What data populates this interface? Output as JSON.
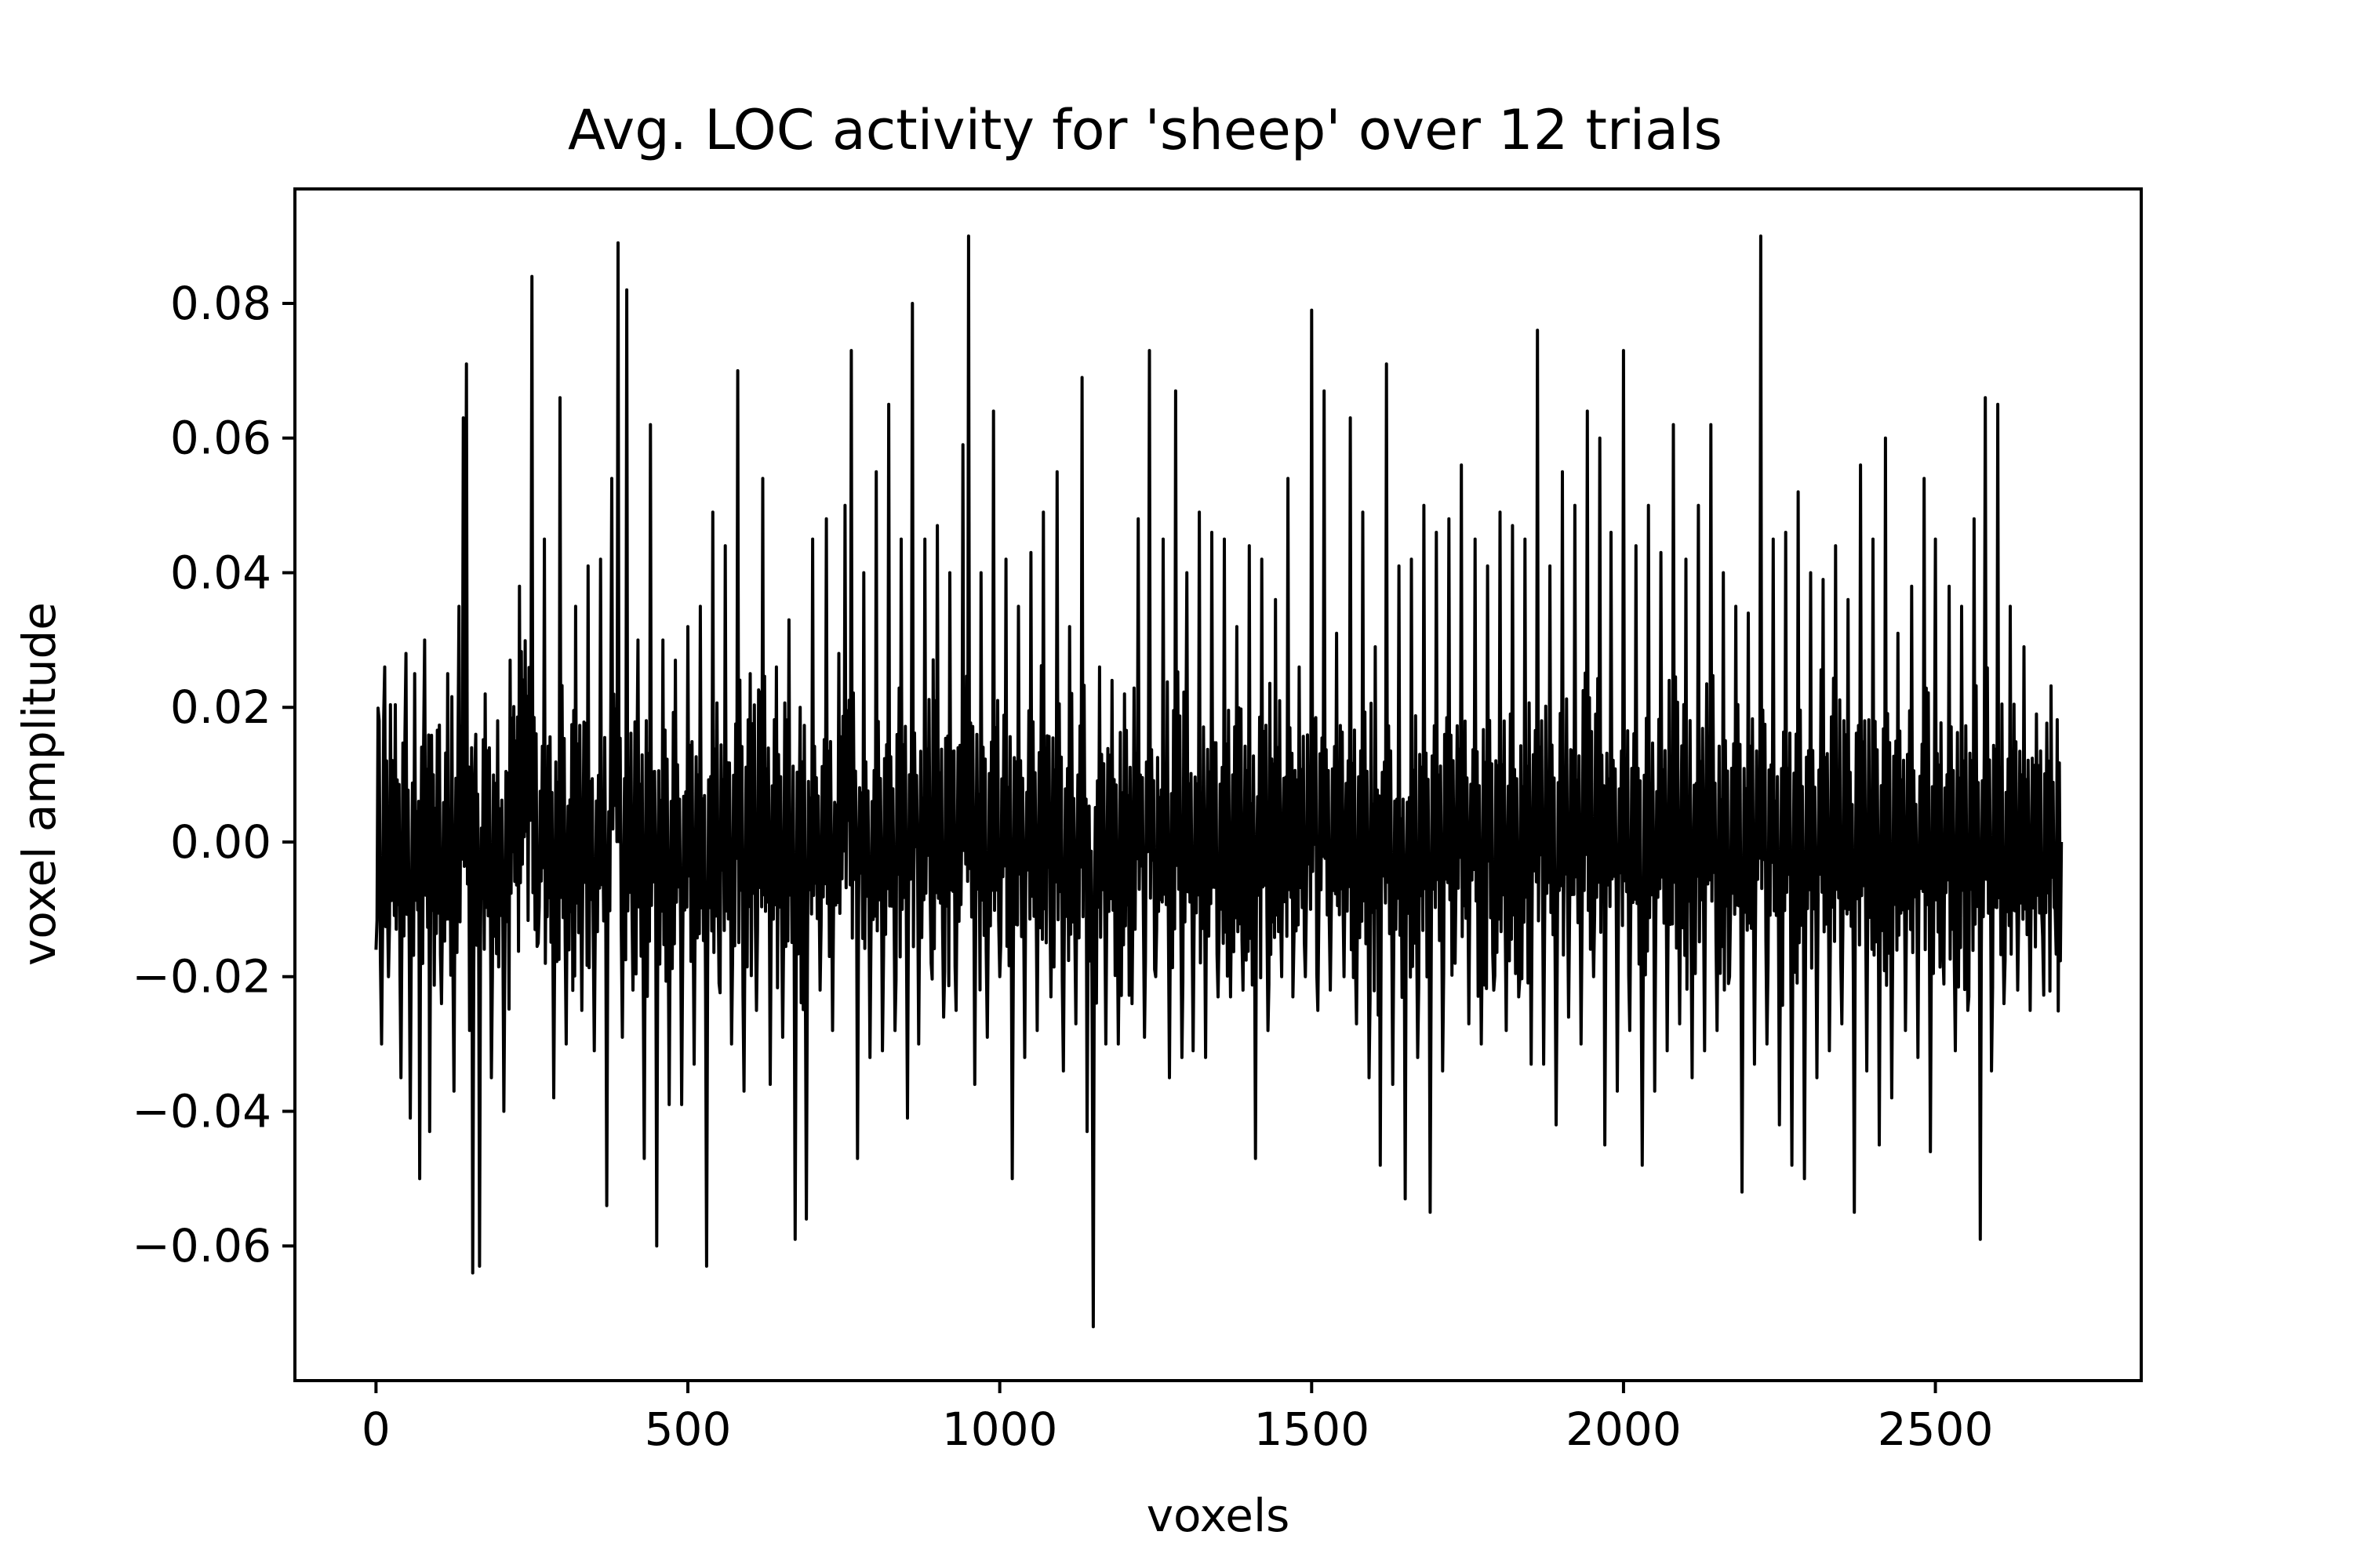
{
  "chart_data": {
    "type": "line",
    "title": "Avg. LOC activity for 'sheep' over 12 trials",
    "xlabel": "voxels",
    "ylabel": "voxel amplitude",
    "xlim": [
      -130,
      2830
    ],
    "ylim": [
      -0.08,
      0.097
    ],
    "xticks": [
      0,
      500,
      1000,
      1500,
      2000,
      2500
    ],
    "xtick_labels": [
      "0",
      "500",
      "1000",
      "1500",
      "2000",
      "2500"
    ],
    "yticks": [
      -0.06,
      -0.04,
      -0.02,
      0.0,
      0.02,
      0.04,
      0.06,
      0.08
    ],
    "ytick_labels": [
      "−0.06",
      "−0.04",
      "−0.02",
      "0.00",
      "0.02",
      "0.04",
      "0.06",
      "0.08"
    ],
    "grid": false,
    "legend": "none",
    "line_color": "#000000",
    "series": [
      {
        "n_points": 2703,
        "x_start": 0,
        "x_end": 2702,
        "peaks": [
          [
            0,
            -0.016
          ],
          [
            5,
            0.018
          ],
          [
            9,
            -0.03
          ],
          [
            14,
            0.026
          ],
          [
            20,
            -0.02
          ],
          [
            28,
            0.004
          ],
          [
            40,
            -0.035
          ],
          [
            48,
            0.028
          ],
          [
            55,
            -0.041
          ],
          [
            62,
            0.025
          ],
          [
            70,
            -0.05
          ],
          [
            78,
            0.03
          ],
          [
            86,
            -0.043
          ],
          [
            95,
            0.005
          ],
          [
            105,
            -0.024
          ],
          [
            115,
            0.025
          ],
          [
            125,
            -0.037
          ],
          [
            133,
            0.035
          ],
          [
            140,
            0.063
          ],
          [
            145,
            0.071
          ],
          [
            150,
            -0.028
          ],
          [
            155,
            -0.064
          ],
          [
            160,
            0.016
          ],
          [
            166,
            -0.063
          ],
          [
            175,
            0.022
          ],
          [
            185,
            -0.035
          ],
          [
            195,
            0.018
          ],
          [
            205,
            -0.04
          ],
          [
            215,
            0.027
          ],
          [
            230,
            0.038
          ],
          [
            250,
            0.084
          ],
          [
            260,
            -0.015
          ],
          [
            270,
            0.045
          ],
          [
            285,
            -0.038
          ],
          [
            295,
            0.066
          ],
          [
            305,
            -0.03
          ],
          [
            320,
            0.035
          ],
          [
            330,
            -0.025
          ],
          [
            340,
            0.041
          ],
          [
            350,
            -0.031
          ],
          [
            360,
            0.042
          ],
          [
            370,
            -0.054
          ],
          [
            378,
            0.054
          ],
          [
            388,
            0.089
          ],
          [
            395,
            -0.029
          ],
          [
            402,
            0.082
          ],
          [
            412,
            -0.022
          ],
          [
            420,
            0.03
          ],
          [
            430,
            -0.047
          ],
          [
            440,
            0.062
          ],
          [
            450,
            -0.06
          ],
          [
            460,
            0.03
          ],
          [
            470,
            -0.039
          ],
          [
            480,
            0.027
          ],
          [
            490,
            -0.039
          ],
          [
            500,
            0.032
          ],
          [
            510,
            -0.033
          ],
          [
            520,
            0.035
          ],
          [
            530,
            -0.063
          ],
          [
            540,
            0.049
          ],
          [
            550,
            -0.021
          ],
          [
            560,
            0.044
          ],
          [
            570,
            -0.03
          ],
          [
            580,
            0.07
          ],
          [
            590,
            -0.037
          ],
          [
            600,
            0.025
          ],
          [
            610,
            -0.025
          ],
          [
            620,
            0.054
          ],
          [
            632,
            -0.036
          ],
          [
            642,
            0.026
          ],
          [
            652,
            -0.029
          ],
          [
            662,
            0.033
          ],
          [
            672,
            -0.059
          ],
          [
            680,
            0.02
          ],
          [
            690,
            -0.056
          ],
          [
            700,
            0.045
          ],
          [
            712,
            -0.022
          ],
          [
            722,
            0.048
          ],
          [
            732,
            -0.028
          ],
          [
            742,
            0.028
          ],
          [
            752,
            0.05
          ],
          [
            762,
            0.073
          ],
          [
            772,
            -0.047
          ],
          [
            782,
            0.04
          ],
          [
            792,
            -0.032
          ],
          [
            802,
            0.055
          ],
          [
            812,
            -0.031
          ],
          [
            822,
            0.065
          ],
          [
            832,
            -0.028
          ],
          [
            842,
            0.045
          ],
          [
            852,
            -0.041
          ],
          [
            860,
            0.08
          ],
          [
            870,
            -0.03
          ],
          [
            880,
            0.045
          ],
          [
            890,
            -0.018
          ],
          [
            900,
            0.047
          ],
          [
            910,
            -0.026
          ],
          [
            920,
            0.04
          ],
          [
            930,
            -0.025
          ],
          [
            941,
            0.059
          ],
          [
            950,
            0.09
          ],
          [
            960,
            -0.036
          ],
          [
            970,
            0.04
          ],
          [
            980,
            -0.029
          ],
          [
            990,
            0.064
          ],
          [
            1000,
            -0.02
          ],
          [
            1010,
            0.042
          ],
          [
            1020,
            -0.05
          ],
          [
            1030,
            0.035
          ],
          [
            1040,
            -0.032
          ],
          [
            1050,
            0.043
          ],
          [
            1060,
            -0.028
          ],
          [
            1070,
            0.049
          ],
          [
            1082,
            -0.023
          ],
          [
            1092,
            0.055
          ],
          [
            1102,
            -0.034
          ],
          [
            1112,
            0.032
          ],
          [
            1122,
            -0.027
          ],
          [
            1132,
            0.069
          ],
          [
            1140,
            -0.043
          ],
          [
            1150,
            -0.072
          ],
          [
            1160,
            0.026
          ],
          [
            1170,
            -0.03
          ],
          [
            1180,
            0.024
          ],
          [
            1190,
            -0.03
          ],
          [
            1200,
            0.022
          ],
          [
            1212,
            -0.024
          ],
          [
            1222,
            0.048
          ],
          [
            1232,
            -0.029
          ],
          [
            1240,
            0.073
          ],
          [
            1250,
            -0.02
          ],
          [
            1262,
            0.045
          ],
          [
            1272,
            -0.035
          ],
          [
            1282,
            0.067
          ],
          [
            1292,
            -0.032
          ],
          [
            1300,
            0.04
          ],
          [
            1310,
            -0.031
          ],
          [
            1320,
            0.049
          ],
          [
            1330,
            -0.032
          ],
          [
            1340,
            0.046
          ],
          [
            1350,
            -0.023
          ],
          [
            1360,
            0.045
          ],
          [
            1370,
            -0.023
          ],
          [
            1380,
            0.032
          ],
          [
            1390,
            -0.022
          ],
          [
            1400,
            0.044
          ],
          [
            1410,
            -0.047
          ],
          [
            1420,
            0.042
          ],
          [
            1430,
            -0.028
          ],
          [
            1442,
            0.036
          ],
          [
            1452,
            -0.02
          ],
          [
            1462,
            0.054
          ],
          [
            1470,
            -0.023
          ],
          [
            1480,
            0.026
          ],
          [
            1490,
            -0.02
          ],
          [
            1500,
            0.079
          ],
          [
            1510,
            -0.025
          ],
          [
            1520,
            0.067
          ],
          [
            1530,
            -0.022
          ],
          [
            1540,
            0.031
          ],
          [
            1552,
            -0.02
          ],
          [
            1562,
            0.063
          ],
          [
            1572,
            -0.027
          ],
          [
            1582,
            0.049
          ],
          [
            1592,
            -0.035
          ],
          [
            1602,
            0.029
          ],
          [
            1610,
            -0.048
          ],
          [
            1620,
            0.071
          ],
          [
            1630,
            -0.036
          ],
          [
            1640,
            0.041
          ],
          [
            1650,
            -0.053
          ],
          [
            1660,
            0.042
          ],
          [
            1670,
            -0.032
          ],
          [
            1680,
            0.05
          ],
          [
            1690,
            -0.055
          ],
          [
            1700,
            0.046
          ],
          [
            1710,
            -0.034
          ],
          [
            1720,
            0.048
          ],
          [
            1730,
            -0.018
          ],
          [
            1740,
            0.056
          ],
          [
            1752,
            -0.027
          ],
          [
            1762,
            0.045
          ],
          [
            1772,
            -0.03
          ],
          [
            1782,
            0.041
          ],
          [
            1792,
            -0.022
          ],
          [
            1802,
            0.049
          ],
          [
            1812,
            -0.028
          ],
          [
            1822,
            0.047
          ],
          [
            1832,
            -0.023
          ],
          [
            1842,
            0.045
          ],
          [
            1852,
            -0.033
          ],
          [
            1862,
            0.076
          ],
          [
            1872,
            -0.033
          ],
          [
            1882,
            0.041
          ],
          [
            1892,
            -0.042
          ],
          [
            1902,
            0.055
          ],
          [
            1912,
            -0.026
          ],
          [
            1922,
            0.05
          ],
          [
            1932,
            -0.03
          ],
          [
            1942,
            0.064
          ],
          [
            1952,
            -0.02
          ],
          [
            1962,
            0.06
          ],
          [
            1970,
            -0.045
          ],
          [
            1980,
            0.046
          ],
          [
            1990,
            -0.037
          ],
          [
            2000,
            0.073
          ],
          [
            2010,
            -0.028
          ],
          [
            2020,
            0.044
          ],
          [
            2030,
            -0.048
          ],
          [
            2040,
            0.05
          ],
          [
            2050,
            -0.037
          ],
          [
            2060,
            0.043
          ],
          [
            2070,
            -0.031
          ],
          [
            2080,
            0.062
          ],
          [
            2090,
            -0.027
          ],
          [
            2100,
            0.042
          ],
          [
            2110,
            -0.035
          ],
          [
            2120,
            0.05
          ],
          [
            2130,
            -0.031
          ],
          [
            2140,
            0.062
          ],
          [
            2150,
            -0.028
          ],
          [
            2160,
            0.04
          ],
          [
            2170,
            -0.02
          ],
          [
            2180,
            0.035
          ],
          [
            2190,
            -0.052
          ],
          [
            2200,
            0.034
          ],
          [
            2210,
            -0.033
          ],
          [
            2220,
            0.09
          ],
          [
            2230,
            -0.03
          ],
          [
            2240,
            0.045
          ],
          [
            2250,
            -0.042
          ],
          [
            2260,
            0.046
          ],
          [
            2270,
            -0.048
          ],
          [
            2280,
            0.052
          ],
          [
            2290,
            -0.05
          ],
          [
            2300,
            0.04
          ],
          [
            2310,
            -0.035
          ],
          [
            2320,
            0.039
          ],
          [
            2330,
            -0.031
          ],
          [
            2340,
            0.044
          ],
          [
            2350,
            -0.027
          ],
          [
            2360,
            0.036
          ],
          [
            2370,
            -0.055
          ],
          [
            2380,
            0.056
          ],
          [
            2390,
            -0.034
          ],
          [
            2400,
            0.045
          ],
          [
            2410,
            -0.045
          ],
          [
            2420,
            0.06
          ],
          [
            2430,
            -0.038
          ],
          [
            2440,
            0.031
          ],
          [
            2452,
            -0.028
          ],
          [
            2462,
            0.038
          ],
          [
            2472,
            -0.032
          ],
          [
            2482,
            0.054
          ],
          [
            2492,
            -0.046
          ],
          [
            2500,
            0.045
          ],
          [
            2512,
            -0.016
          ],
          [
            2522,
            0.038
          ],
          [
            2532,
            -0.031
          ],
          [
            2542,
            0.035
          ],
          [
            2552,
            -0.025
          ],
          [
            2562,
            0.048
          ],
          [
            2572,
            -0.059
          ],
          [
            2580,
            0.066
          ],
          [
            2590,
            -0.034
          ],
          [
            2600,
            0.065
          ],
          [
            2610,
            -0.024
          ],
          [
            2620,
            0.035
          ],
          [
            2632,
            -0.022
          ],
          [
            2642,
            0.029
          ],
          [
            2652,
            -0.025
          ],
          [
            2662,
            0.019
          ],
          [
            2672,
            -0.014
          ],
          [
            2682,
            0.012
          ],
          [
            2692,
            -0.01
          ],
          [
            2702,
            0.0
          ]
        ]
      }
    ]
  }
}
